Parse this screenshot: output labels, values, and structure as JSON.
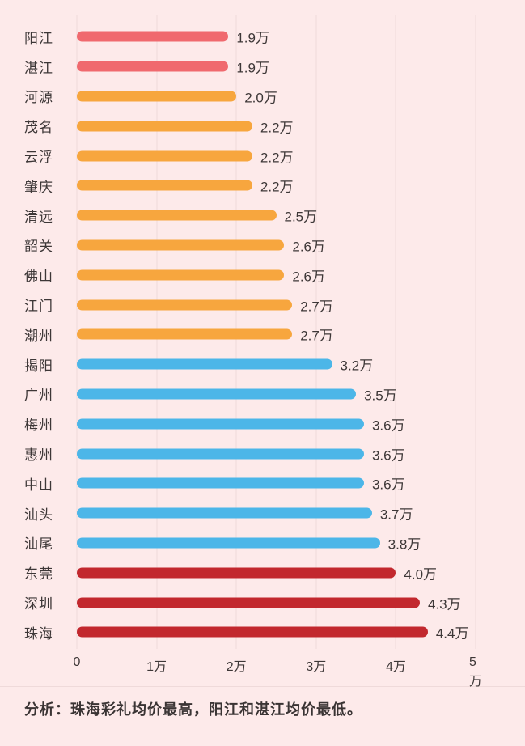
{
  "analysis": "分析：珠海彩礼均价最高，阳江和湛江均价最低。",
  "palette": {
    "salmon": "#f0696e",
    "orange": "#f7a63e",
    "blue": "#4cb6e8",
    "darkred": "#c2282e"
  },
  "chart_data": {
    "type": "bar",
    "orientation": "horizontal",
    "title": "",
    "xlabel": "",
    "ylabel": "",
    "xlim": [
      0,
      5
    ],
    "grid": true,
    "legend": "none",
    "unit": "万",
    "categories": [
      "阳江",
      "湛江",
      "河源",
      "茂名",
      "云浮",
      "肇庆",
      "清远",
      "韶关",
      "佛山",
      "江门",
      "潮州",
      "揭阳",
      "广州",
      "梅州",
      "惠州",
      "中山",
      "汕头",
      "汕尾",
      "东莞",
      "深圳",
      "珠海"
    ],
    "values": [
      1.9,
      1.9,
      2.0,
      2.2,
      2.2,
      2.2,
      2.5,
      2.6,
      2.6,
      2.7,
      2.7,
      3.2,
      3.5,
      3.6,
      3.6,
      3.6,
      3.7,
      3.8,
      4.0,
      4.3,
      4.4
    ],
    "value_labels": [
      "1.9万",
      "1.9万",
      "2.0万",
      "2.2万",
      "2.2万",
      "2.2万",
      "2.5万",
      "2.6万",
      "2.6万",
      "2.7万",
      "2.7万",
      "3.2万",
      "3.5万",
      "3.6万",
      "3.6万",
      "3.6万",
      "3.7万",
      "3.8万",
      "4.0万",
      "4.3万",
      "4.4万"
    ],
    "bar_colors": [
      "salmon",
      "salmon",
      "orange",
      "orange",
      "orange",
      "orange",
      "orange",
      "orange",
      "orange",
      "orange",
      "orange",
      "blue",
      "blue",
      "blue",
      "blue",
      "blue",
      "blue",
      "blue",
      "darkred",
      "darkred",
      "darkred"
    ],
    "xticks": [
      "0",
      "1万",
      "2万",
      "3万",
      "4万",
      "5万"
    ]
  }
}
